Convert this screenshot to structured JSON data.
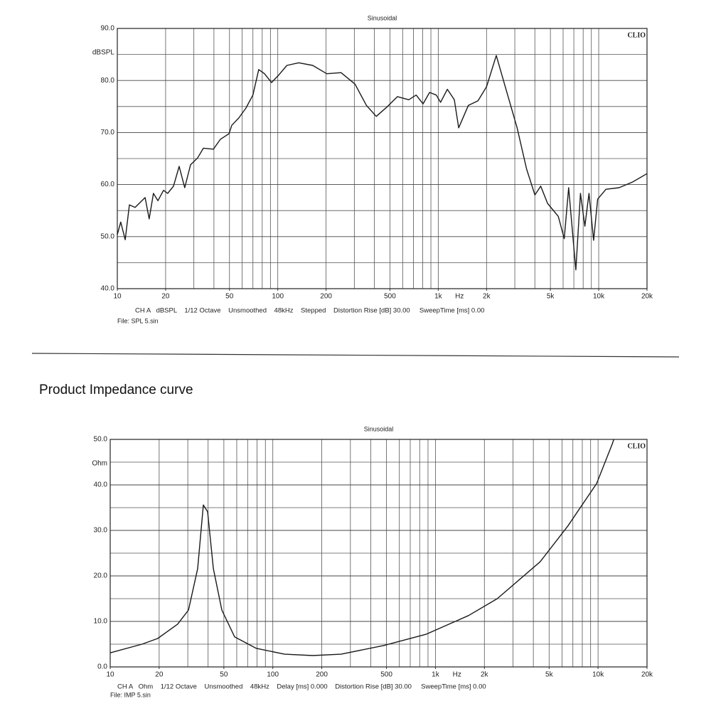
{
  "heading": "Product Impedance curve",
  "chart_data": [
    {
      "type": "line",
      "title": "Sinusoidal",
      "logo": "CLIO",
      "yunit": "dBSPL",
      "xlabel": "Hz",
      "footer": "CH A   dBSPL    1/12 Octave    Unsmoothed    48kHz    Stepped    Distortion Rise [dB] 30.00     SweepTime [ms] 0.00",
      "file": "File: SPL 5.sin",
      "xscale": "log",
      "grid": true,
      "xlim": [
        10,
        20000
      ],
      "xticks": [
        10,
        20,
        50,
        100,
        200,
        500,
        {
          "value": 1000,
          "label": "1k"
        },
        {
          "value": 2000,
          "label": "2k"
        },
        {
          "value": 5000,
          "label": "5k"
        },
        {
          "value": 10000,
          "label": "10k"
        },
        {
          "value": 20000,
          "label": "20k"
        }
      ],
      "xgrid": [
        10,
        20,
        30,
        40,
        50,
        60,
        70,
        80,
        90,
        100,
        200,
        300,
        400,
        500,
        600,
        700,
        800,
        900,
        1000,
        2000,
        3000,
        4000,
        5000,
        6000,
        7000,
        8000,
        9000,
        10000,
        20000
      ],
      "ylim": [
        40,
        90
      ],
      "yticks": [
        {
          "value": 40,
          "label": "40.0"
        },
        {
          "value": 50,
          "label": "50.0"
        },
        {
          "value": 60,
          "label": "60.0"
        },
        {
          "value": 70,
          "label": "70.0"
        },
        {
          "value": 80,
          "label": "80.0"
        },
        {
          "value": 90,
          "label": "90.0"
        }
      ],
      "yminor": [
        45,
        55,
        65,
        75,
        85
      ],
      "x": [
        10,
        10.5,
        11.2,
        11.9,
        12.9,
        14.9,
        15.8,
        16.8,
        17.9,
        19.4,
        20.6,
        22.4,
        24.3,
        26.3,
        28.6,
        31.6,
        34.4,
        39.7,
        43.9,
        49.7,
        51.7,
        57.2,
        63.3,
        70,
        76.1,
        82.6,
        91.4,
        101,
        114,
        135,
        165,
        202,
        248,
        303,
        357,
        411,
        483,
        557,
        655,
        728,
        804,
        883,
        972,
        1033,
        1140,
        1260,
        1340,
        1540,
        1770,
        2000,
        2300,
        2600,
        3100,
        3550,
        4000,
        4350,
        4800,
        5600,
        6100,
        6500,
        6950,
        7200,
        7700,
        8200,
        8700,
        9300,
        9850,
        11100,
        13400,
        16300,
        20000
      ],
      "series": [
        {
          "color": "#1a1a1a",
          "values": [
            50.4,
            52.8,
            49.4,
            56.1,
            55.6,
            57.5,
            53.4,
            58.3,
            56.9,
            58.9,
            58.3,
            59.7,
            63.5,
            59.4,
            63.8,
            65.1,
            67.0,
            66.8,
            68.7,
            69.8,
            71.4,
            72.8,
            74.7,
            77.2,
            82.1,
            81.3,
            79.6,
            81.0,
            82.9,
            83.4,
            82.9,
            81.3,
            81.5,
            79.3,
            75.2,
            73.1,
            75.0,
            76.9,
            76.3,
            77.2,
            75.5,
            77.7,
            77.2,
            75.8,
            78.3,
            76.3,
            70.9,
            75.2,
            76.1,
            78.8,
            84.8,
            79.1,
            70.9,
            63.0,
            58.0,
            59.7,
            56.4,
            53.9,
            49.6,
            59.4,
            49.0,
            43.6,
            58.3,
            52.0,
            58.3,
            49.3,
            57.2,
            59.1,
            59.4,
            60.5,
            62.1
          ]
        }
      ]
    },
    {
      "type": "line",
      "title": "Sinusoidal",
      "logo": "CLIO",
      "yunit": "Ohm",
      "xlabel": "Hz",
      "footer": "CH A   Ohm    1/12 Octave    Unsmoothed    48kHz    Delay [ms] 0.000    Distortion Rise [dB] 30.00     SweepTime [ms] 0.00",
      "file": "File: IMP 5.sin",
      "xscale": "log",
      "grid": true,
      "xlim": [
        10,
        20000
      ],
      "xticks": [
        10,
        20,
        50,
        100,
        200,
        500,
        {
          "value": 1000,
          "label": "1k"
        },
        {
          "value": 2000,
          "label": "2k"
        },
        {
          "value": 5000,
          "label": "5k"
        },
        {
          "value": 10000,
          "label": "10k"
        },
        {
          "value": 20000,
          "label": "20k"
        }
      ],
      "xgrid": [
        10,
        20,
        30,
        40,
        50,
        60,
        70,
        80,
        90,
        100,
        200,
        300,
        400,
        500,
        600,
        700,
        800,
        900,
        1000,
        2000,
        3000,
        4000,
        5000,
        6000,
        7000,
        8000,
        9000,
        10000,
        20000
      ],
      "ylim": [
        0,
        50
      ],
      "yticks": [
        {
          "value": 0,
          "label": "0.0"
        },
        {
          "value": 10,
          "label": "10.0"
        },
        {
          "value": 20,
          "label": "20.0"
        },
        {
          "value": 30,
          "label": "30.0"
        },
        {
          "value": 40,
          "label": "40.0"
        },
        {
          "value": 50,
          "label": "50.0"
        }
      ],
      "yminor": [
        5,
        15,
        25,
        35,
        45
      ],
      "x": [
        10,
        15.7,
        19.6,
        26,
        30.3,
        34.5,
        37.4,
        39.7,
        43.1,
        48.6,
        58.2,
        78.9,
        118,
        176,
        263,
        480,
        880,
        1600,
        2400,
        4400,
        6500,
        9800,
        12200,
        12500
      ],
      "series": [
        {
          "color": "#1a1a1a",
          "values": [
            3.1,
            5.0,
            6.25,
            9.4,
            12.5,
            21.6,
            35.6,
            34.1,
            21.6,
            12.5,
            6.6,
            4.1,
            2.8,
            2.5,
            2.8,
            4.7,
            7.2,
            11.3,
            15.0,
            23.1,
            30.9,
            40.3,
            48.9,
            50
          ]
        }
      ]
    }
  ]
}
